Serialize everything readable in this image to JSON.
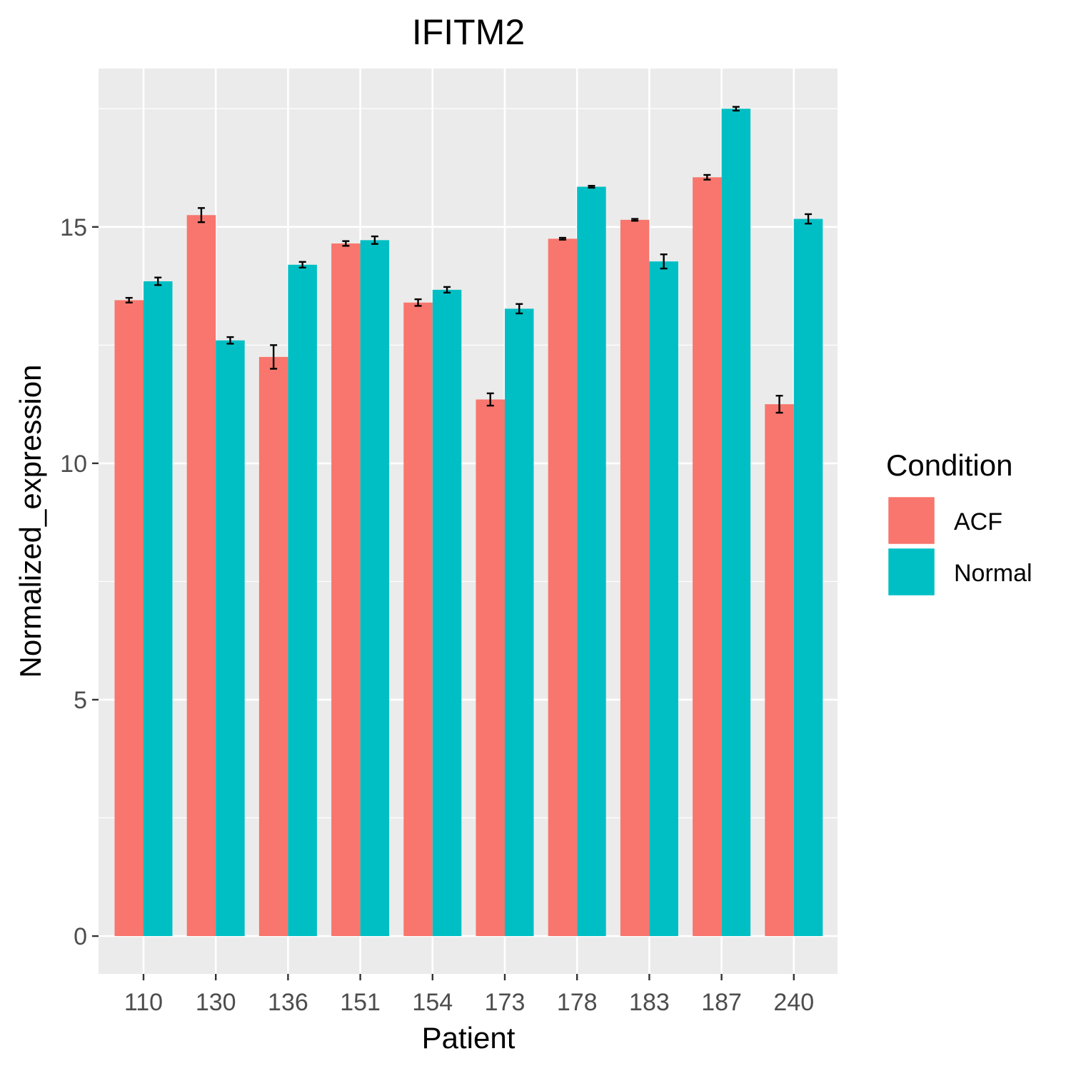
{
  "chart_data": {
    "type": "bar",
    "title": "IFITM2",
    "xlabel": "Patient",
    "ylabel": "Normalized_expression",
    "categories": [
      "110",
      "130",
      "136",
      "151",
      "154",
      "173",
      "178",
      "183",
      "187",
      "240"
    ],
    "series": [
      {
        "name": "ACF",
        "color": "#F8766D",
        "values": [
          13.45,
          15.25,
          12.25,
          14.65,
          13.4,
          11.35,
          14.75,
          15.15,
          16.05,
          11.25
        ],
        "error": [
          0.05,
          0.15,
          0.25,
          0.05,
          0.07,
          0.13,
          0.02,
          0.02,
          0.05,
          0.18
        ]
      },
      {
        "name": "Normal",
        "color": "#00BFC4",
        "values": [
          13.85,
          12.6,
          14.2,
          14.72,
          13.67,
          13.27,
          15.85,
          14.27,
          17.5,
          15.17
        ],
        "error": [
          0.08,
          0.07,
          0.06,
          0.08,
          0.06,
          0.1,
          0.02,
          0.15,
          0.04,
          0.1
        ]
      }
    ],
    "yticks": [
      0,
      5,
      10,
      15
    ],
    "ylim": [
      -0.8,
      18.35
    ],
    "grid": true,
    "legend": {
      "title": "Condition",
      "position": "right"
    }
  }
}
